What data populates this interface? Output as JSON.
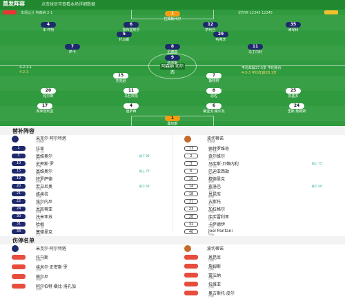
{
  "pitch": {
    "title": "首发阵容",
    "subtitle": "点击球员可查看本场详细数据",
    "left_info": "本场比分 阿森纳 2-1",
    "right_info": "切尔西 12345  12345",
    "mid_left": "4-2-3-1",
    "mid_left2": "4-2-3",
    "mid_right": "平均年龄27.5岁 平均身价",
    "mid_right2": "4-3-3 平均年龄28.1岁",
    "score_tag": "阿森纳 切尔西"
  },
  "home_players": [
    {
      "num": "1",
      "name": "拉姆斯代尔"
    },
    {
      "num": "4",
      "name": "本·怀特"
    },
    {
      "num": "6",
      "name": "加布里埃尔"
    },
    {
      "num": "12",
      "name": "萨利巴"
    },
    {
      "num": "35",
      "name": "津琴科"
    },
    {
      "num": "5",
      "name": "托马斯"
    },
    {
      "num": "29",
      "name": "哈弗茨"
    },
    {
      "num": "7",
      "name": "萨卡"
    },
    {
      "num": "8",
      "name": "厄德高"
    },
    {
      "num": "11",
      "name": "马丁内利"
    },
    {
      "num": "9",
      "name": "热苏斯"
    }
  ],
  "away_players": [
    {
      "num": "1",
      "name": "桑切斯"
    },
    {
      "num": "24",
      "name": "里斯·詹姆斯"
    },
    {
      "num": "6",
      "name": "蒂亚戈·席尔瓦"
    },
    {
      "num": "4",
      "name": "迪萨西"
    },
    {
      "num": "17",
      "name": "库库雷利亚"
    },
    {
      "num": "25",
      "name": "凯塞多"
    },
    {
      "num": "8",
      "name": "恩佐"
    },
    {
      "num": "11",
      "name": "马杜埃凯"
    },
    {
      "num": "20",
      "name": "帕尔默"
    },
    {
      "num": "7",
      "name": "斯特林"
    },
    {
      "num": "15",
      "name": "杰克逊"
    }
  ],
  "lineups": {
    "title": "替补阵容",
    "home_coach": {
      "name": "米克尔·阿尔特塔",
      "role": "主教练"
    },
    "away_coach": {
      "name": "波切蒂诺",
      "role": "主教练"
    },
    "home_subs": [
      {
        "num": "1",
        "name": "拉亚",
        "pos": "守门员",
        "ev": ""
      },
      {
        "num": "3",
        "name": "基维奥尔",
        "pos": "后卫",
        "ev": "换下 80'"
      },
      {
        "num": "10",
        "name": "史密斯·罗",
        "pos": "中场",
        "ev": ""
      },
      {
        "num": "15",
        "name": "基维奥尔",
        "pos": "后卫",
        "ev": "换上 72'"
      },
      {
        "num": "19",
        "name": "特罗萨德",
        "pos": "前锋",
        "ev": ""
      },
      {
        "num": "20",
        "name": "若日尼奥",
        "pos": "中场",
        "ev": "换下 64'"
      },
      {
        "num": "21",
        "name": "维埃拉",
        "pos": "中场",
        "ev": ""
      },
      {
        "num": "22",
        "name": "埃尔内尼",
        "pos": "中场",
        "ev": ""
      },
      {
        "num": "24",
        "name": "恩凯蒂亚",
        "pos": "前锋",
        "ev": ""
      },
      {
        "num": "30",
        "name": "托米亚苏",
        "pos": "后卫",
        "ev": ""
      },
      {
        "num": "31",
        "name": "哈根",
        "pos": "守门员",
        "ev": ""
      },
      {
        "num": "33",
        "name": "塞德里克",
        "pos": "后卫",
        "ev": ""
      }
    ],
    "away_subs": [
      {
        "num": "13",
        "name": "佩特罗维奇",
        "pos": "守门员",
        "ev": ""
      },
      {
        "num": "2",
        "name": "奇尔维尔",
        "pos": "后卫",
        "ev": ""
      },
      {
        "num": "3",
        "name": "马库斯·贝蒂内利",
        "pos": "守门员",
        "ev": "换上 75'"
      },
      {
        "num": "5",
        "name": "巴迪亚西勒",
        "pos": "后卫",
        "ev": ""
      },
      {
        "num": "10",
        "name": "穆德里克",
        "pos": "前锋",
        "ev": ""
      },
      {
        "num": "14",
        "name": "查洛巴",
        "pos": "后卫",
        "ev": "换下 60'"
      },
      {
        "num": "18",
        "name": "恩昆库",
        "pos": "前锋",
        "ev": ""
      },
      {
        "num": "21",
        "name": "古斯托",
        "pos": "后卫",
        "ev": ""
      },
      {
        "num": "23",
        "name": "加拉格尔",
        "pos": "中场",
        "ev": ""
      },
      {
        "num": "28",
        "name": "库库雷利亚",
        "pos": "后卫",
        "ev": ""
      },
      {
        "num": "31",
        "name": "卡萨德伊",
        "pos": "中场",
        "ev": ""
      },
      {
        "num": "40",
        "name": "Joel Pantani",
        "pos": "中场",
        "ev": ""
      }
    ]
  },
  "injuries": {
    "title": "伤停名单",
    "home_coach": {
      "name": "米克尔·阿尔特塔",
      "role": ""
    },
    "away_coach": {
      "name": "波切蒂诺",
      "role": ""
    },
    "home": [
      {
        "name": "托马斯",
        "pos": "伤病"
      },
      {
        "name": "埃米尔·史密斯·罗",
        "pos": "伤病"
      },
      {
        "name": "蒂尔尼",
        "pos": "停赛"
      },
      {
        "name": "阿尔伯特·桑比·洛孔加",
        "pos": "伤病"
      }
    ],
    "away": [
      {
        "name": "恩昆库",
        "pos": "伤病"
      },
      {
        "name": "詹姆斯",
        "pos": "伤病"
      },
      {
        "name": "富法纳",
        "pos": "伤病"
      },
      {
        "name": "拉维亚",
        "pos": "伤病"
      },
      {
        "name": "奥古斯托·皮尔",
        "pos": "停赛"
      }
    ]
  },
  "colors": {
    "pitch": "#2f9a3e",
    "home": "#1e2a6b",
    "away": "#ffffff",
    "gk": "#f39c12"
  }
}
